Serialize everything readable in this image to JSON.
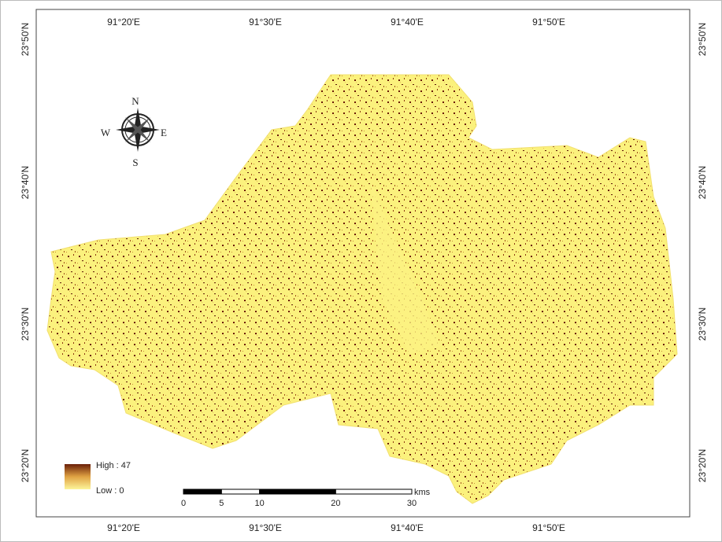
{
  "map": {
    "longitude_labels": [
      "91°20'E",
      "91°30'E",
      "91°40'E",
      "91°50'E"
    ],
    "latitude_labels": [
      "23°50'N",
      "23°40'N",
      "23°30'N",
      "23°20'N"
    ],
    "compass": {
      "north": "N",
      "south": "S",
      "east": "E",
      "west": "W"
    },
    "legend": {
      "high": "High : 47",
      "low": "Low : 0"
    },
    "scale_bar": {
      "ticks": [
        0,
        5,
        10,
        20,
        30
      ],
      "unit": "kms"
    }
  }
}
